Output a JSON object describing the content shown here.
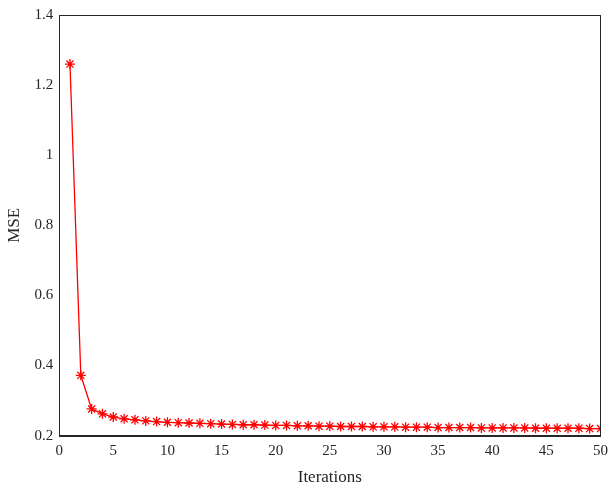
{
  "chart_data": {
    "type": "line",
    "x_label": "Iterations",
    "y_label": "MSE",
    "x": [
      1,
      2,
      3,
      4,
      5,
      6,
      7,
      8,
      9,
      10,
      11,
      12,
      13,
      14,
      15,
      16,
      17,
      18,
      19,
      20,
      21,
      22,
      23,
      24,
      25,
      26,
      27,
      28,
      29,
      30,
      31,
      32,
      33,
      34,
      35,
      36,
      37,
      38,
      39,
      40,
      41,
      42,
      43,
      44,
      45,
      46,
      47,
      48,
      49,
      50
    ],
    "values": [
      1.26,
      0.372,
      0.276,
      0.262,
      0.253,
      0.248,
      0.245,
      0.242,
      0.24,
      0.238,
      0.237,
      0.236,
      0.235,
      0.234,
      0.233,
      0.232,
      0.231,
      0.231,
      0.23,
      0.229,
      0.229,
      0.228,
      0.228,
      0.227,
      0.227,
      0.226,
      0.226,
      0.226,
      0.225,
      0.225,
      0.225,
      0.224,
      0.224,
      0.224,
      0.223,
      0.223,
      0.223,
      0.223,
      0.222,
      0.222,
      0.222,
      0.222,
      0.222,
      0.221,
      0.221,
      0.221,
      0.221,
      0.221,
      0.22,
      0.22
    ],
    "color": "#ff0000",
    "marker": "star",
    "line_style": "solid",
    "xlim": [
      0,
      50
    ],
    "xticks": [
      0,
      5,
      10,
      15,
      20,
      25,
      30,
      35,
      40,
      45,
      50
    ],
    "ylim": [
      0.2,
      1.4
    ],
    "yticks": [
      0.2,
      0.4,
      0.6,
      0.8,
      1,
      1.2,
      1.4
    ],
    "grid": false
  }
}
